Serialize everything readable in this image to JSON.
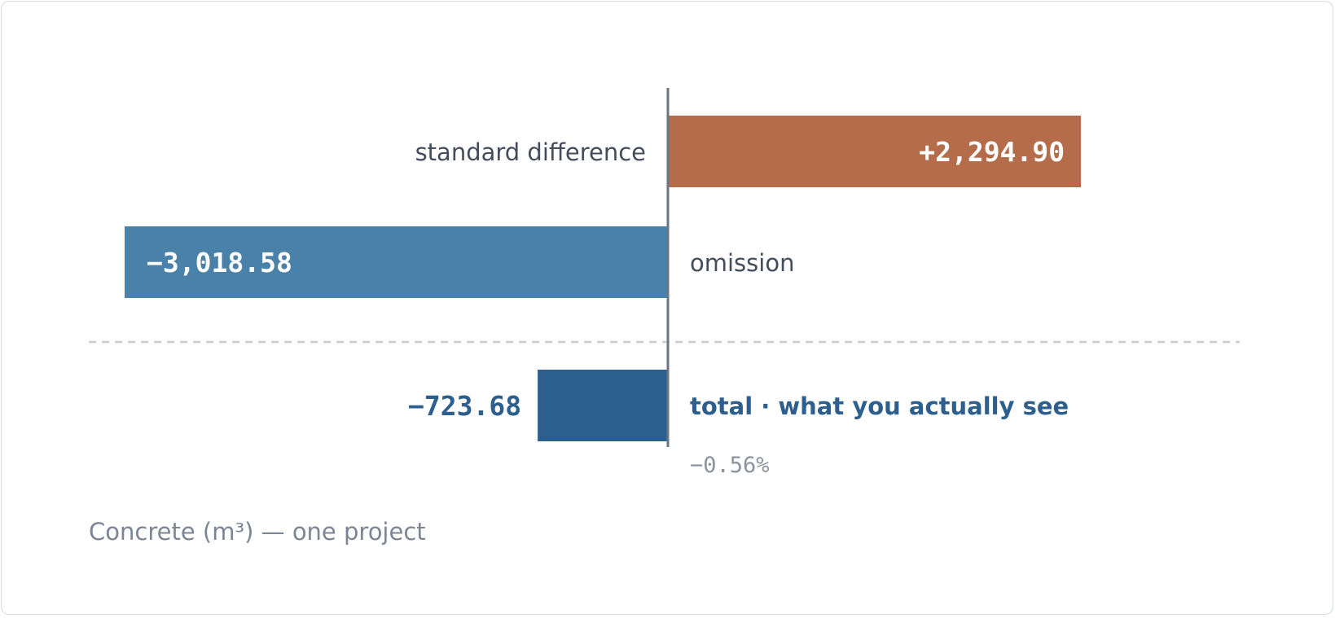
{
  "chart_data": {
    "type": "bar",
    "orientation": "horizontal",
    "categories": [
      "standard difference",
      "omission",
      "total · what you actually see"
    ],
    "values": [
      2294.9,
      -3018.58,
      -723.68
    ],
    "value_labels": [
      "+2,294.90",
      "−3,018.58",
      "−723.68"
    ],
    "total_percent_label": "−0.56%",
    "caption": "Concrete (m³) — one project",
    "xlim": [
      -3018.58,
      3018.58
    ],
    "grid": false,
    "colors": {
      "positive": "#b46c4b",
      "negative": "#4a81a8",
      "total": "#2c5e8e",
      "axis": "#6b7685",
      "separator": "#c9cdd3"
    }
  }
}
